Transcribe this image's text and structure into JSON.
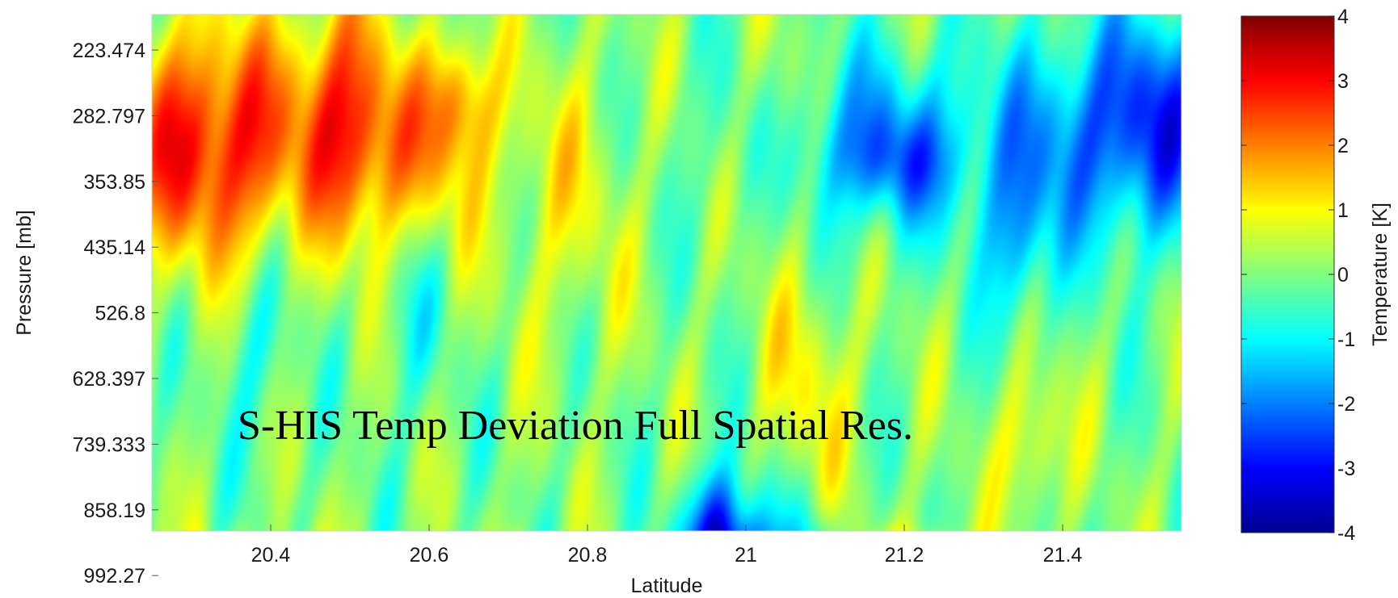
{
  "chart_data": {
    "type": "heatmap",
    "annotation": "S-HIS Temp Deviation Full Spatial Res.",
    "xlabel": "Latitude",
    "ylabel": "Pressure [mb]",
    "xlim": [
      20.25,
      21.55
    ],
    "x_ticks": [
      "20.4",
      "20.6",
      "20.8",
      "21",
      "21.2",
      "21.4"
    ],
    "y_ticks": [
      "223.474",
      "282.797",
      "353.85",
      "435.14",
      "526.8",
      "628.397",
      "739.333",
      "858.19",
      "992.27"
    ],
    "colorbar": {
      "label": "Temperature [K]",
      "range": [
        -4,
        4
      ],
      "ticks": [
        "4",
        "3",
        "2",
        "1",
        "0",
        "-1",
        "-2",
        "-3",
        "-4"
      ],
      "colormap": "jet"
    },
    "features": [
      {
        "lat": 20.28,
        "p_idx": 1.4,
        "value": 2.4,
        "slat": 0.05,
        "sp": 1.3
      },
      {
        "lat": 20.37,
        "p_idx": 1.4,
        "value": 2.2,
        "slat": 0.045,
        "sp": 1.3
      },
      {
        "lat": 20.49,
        "p_idx": 1.0,
        "value": 2.6,
        "slat": 0.045,
        "sp": 1.3
      },
      {
        "lat": 20.58,
        "p_idx": 1.6,
        "value": 1.4,
        "slat": 0.06,
        "sp": 1.0
      },
      {
        "lat": 20.64,
        "p_idx": 0.7,
        "value": 1.6,
        "slat": 0.03,
        "sp": 0.7
      },
      {
        "lat": 20.77,
        "p_idx": 2.2,
        "value": 0.8,
        "slat": 0.06,
        "sp": 1.6
      },
      {
        "lat": 21.04,
        "p_idx": 1.2,
        "value": 0.9,
        "slat": 0.03,
        "sp": 1.2
      },
      {
        "lat": 21.17,
        "p_idx": 1.4,
        "value": -1.6,
        "slat": 0.12,
        "sp": 1.0
      },
      {
        "lat": 21.19,
        "p_idx": 1.7,
        "value": -0.9,
        "slat": 0.05,
        "sp": 0.5
      },
      {
        "lat": 21.43,
        "p_idx": 1.3,
        "value": -1.8,
        "slat": 0.07,
        "sp": 1.2
      },
      {
        "lat": 21.53,
        "p_idx": 1.0,
        "value": -2.0,
        "slat": 0.05,
        "sp": 1.2
      },
      {
        "lat": 21.34,
        "p_idx": 3.0,
        "value": -1.4,
        "slat": 0.03,
        "sp": 0.9
      },
      {
        "lat": 20.38,
        "p_idx": 4.5,
        "value": -0.8,
        "slat": 0.03,
        "sp": 1.0
      },
      {
        "lat": 20.58,
        "p_idx": 4.2,
        "value": -0.6,
        "slat": 0.03,
        "sp": 1.0
      },
      {
        "lat": 21.08,
        "p_idx": 5.0,
        "value": 1.0,
        "slat": 0.04,
        "sp": 1.2
      },
      {
        "lat": 21.36,
        "p_idx": 6.0,
        "value": 1.1,
        "slat": 0.03,
        "sp": 0.8
      },
      {
        "lat": 20.98,
        "p_idx": 8.0,
        "value": -3.8,
        "slat": 0.045,
        "sp": 0.8
      },
      {
        "lat": 20.96,
        "p_idx": 7.1,
        "value": -1.2,
        "slat": 0.02,
        "sp": 0.6
      },
      {
        "lat": 21.09,
        "p_idx": 8.0,
        "value": -1.6,
        "slat": 0.015,
        "sp": 0.6
      },
      {
        "lat": 21.24,
        "p_idx": 8.0,
        "value": 1.8,
        "slat": 0.04,
        "sp": 0.4
      },
      {
        "lat": 21.18,
        "p_idx": 8.0,
        "value": 1.4,
        "slat": 0.02,
        "sp": 0.4
      },
      {
        "lat": 20.71,
        "p_idx": 8.0,
        "value": 1.5,
        "slat": 0.012,
        "sp": 0.4
      },
      {
        "lat": 20.26,
        "p_idx": 8.0,
        "value": 1.4,
        "slat": 0.01,
        "sp": 0.4
      },
      {
        "lat": 20.31,
        "p_idx": 8.0,
        "value": 1.3,
        "slat": 0.01,
        "sp": 0.4
      },
      {
        "lat": 20.36,
        "p_idx": 8.0,
        "value": 1.3,
        "slat": 0.01,
        "sp": 0.4
      },
      {
        "lat": 20.42,
        "p_idx": 8.0,
        "value": 1.2,
        "slat": 0.01,
        "sp": 0.4
      },
      {
        "lat": 20.46,
        "p_idx": 8.0,
        "value": 1.2,
        "slat": 0.01,
        "sp": 0.4
      }
    ]
  }
}
